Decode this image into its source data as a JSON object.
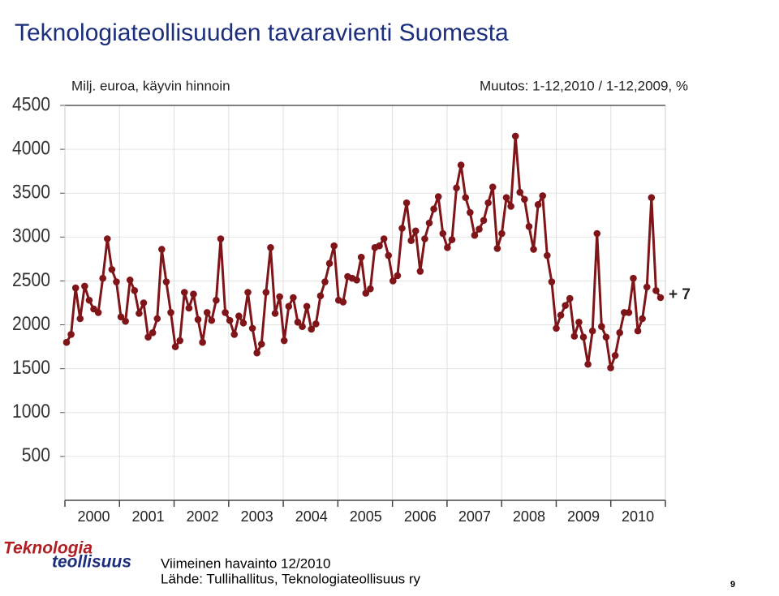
{
  "chart_data": {
    "type": "line",
    "title": "Teknologiateollisuuden tavaravienti Suomesta",
    "subtitle": "Milj. euroa, käyvin hinnoin",
    "change_label": "Muutos: 1-12,2010 / 1-12,2009, %",
    "annotation": "+ 7",
    "categories": [
      null,
      null,
      null,
      null,
      null,
      null,
      "2000",
      null,
      null,
      null,
      null,
      null,
      null,
      null,
      null,
      null,
      null,
      null,
      "2001",
      null,
      null,
      null,
      null,
      null,
      null,
      null,
      null,
      null,
      null,
      null,
      "2002",
      null,
      null,
      null,
      null,
      null,
      null,
      null,
      null,
      null,
      null,
      null,
      "2003",
      null,
      null,
      null,
      null,
      null,
      null,
      null,
      null,
      null,
      null,
      null,
      "2004",
      null,
      null,
      null,
      null,
      null,
      null,
      null,
      null,
      null,
      null,
      null,
      "2005",
      null,
      null,
      null,
      null,
      null,
      null,
      null,
      null,
      null,
      null,
      null,
      "2006",
      null,
      null,
      null,
      null,
      null,
      null,
      null,
      null,
      null,
      null,
      null,
      "2007",
      null,
      null,
      null,
      null,
      null,
      null,
      null,
      null,
      null,
      null,
      null,
      "2008",
      null,
      null,
      null,
      null,
      null,
      null,
      null,
      null,
      null,
      null,
      null,
      "2009",
      null,
      null,
      null,
      null,
      null,
      null,
      null,
      null,
      null,
      null,
      null,
      "2010",
      null,
      null,
      null,
      null,
      null
    ],
    "series": [
      {
        "color": "#7f1518",
        "values": [
          1800,
          1890,
          2420,
          2070,
          2440,
          2280,
          2180,
          2140,
          2530,
          2980,
          2630,
          2490,
          2090,
          2040,
          2510,
          2390,
          2130,
          2250,
          1860,
          1910,
          2070,
          2860,
          2490,
          2140,
          1750,
          1820,
          2370,
          2190,
          2350,
          2060,
          1800,
          2140,
          2050,
          2280,
          2980,
          2140,
          2050,
          1890,
          2100,
          2020,
          2370,
          1960,
          1680,
          1780,
          2370,
          2880,
          2130,
          2320,
          1820,
          2210,
          2310,
          2030,
          1980,
          2210,
          1950,
          2010,
          2330,
          2490,
          2700,
          2900,
          2280,
          2260,
          2550,
          2530,
          2510,
          2770,
          2360,
          2410,
          2880,
          2900,
          2980,
          2790,
          2500,
          2560,
          3100,
          3390,
          2960,
          3070,
          2610,
          2980,
          3160,
          3320,
          3460,
          3040,
          2880,
          2970,
          3560,
          3820,
          3450,
          3280,
          3020,
          3090,
          3190,
          3390,
          3570,
          2870,
          3040,
          3450,
          3350,
          4150,
          3510,
          3430,
          3120,
          2860,
          3370,
          3470,
          2790,
          2490,
          1960,
          2110,
          2220,
          2300,
          1870,
          2030,
          1860,
          1550,
          1930,
          3040,
          1980,
          1860,
          1510,
          1650,
          1910,
          2140,
          2140,
          2530,
          1930,
          2070,
          2430,
          3450,
          2390,
          2310
        ]
      }
    ],
    "ylim": [
      0,
      4500
    ],
    "yticks": [
      500,
      1000,
      1500,
      2000,
      2500,
      3000,
      3500,
      4000,
      4500
    ],
    "grid": true,
    "footer": {
      "last": "Viimeinen havainto 12/2010",
      "source": "Lähde: Tullihallitus, Teknologiateollisuus ry",
      "page": "9"
    },
    "logo": {
      "line1": "Teknologia",
      "line2": "teollisuus"
    }
  }
}
